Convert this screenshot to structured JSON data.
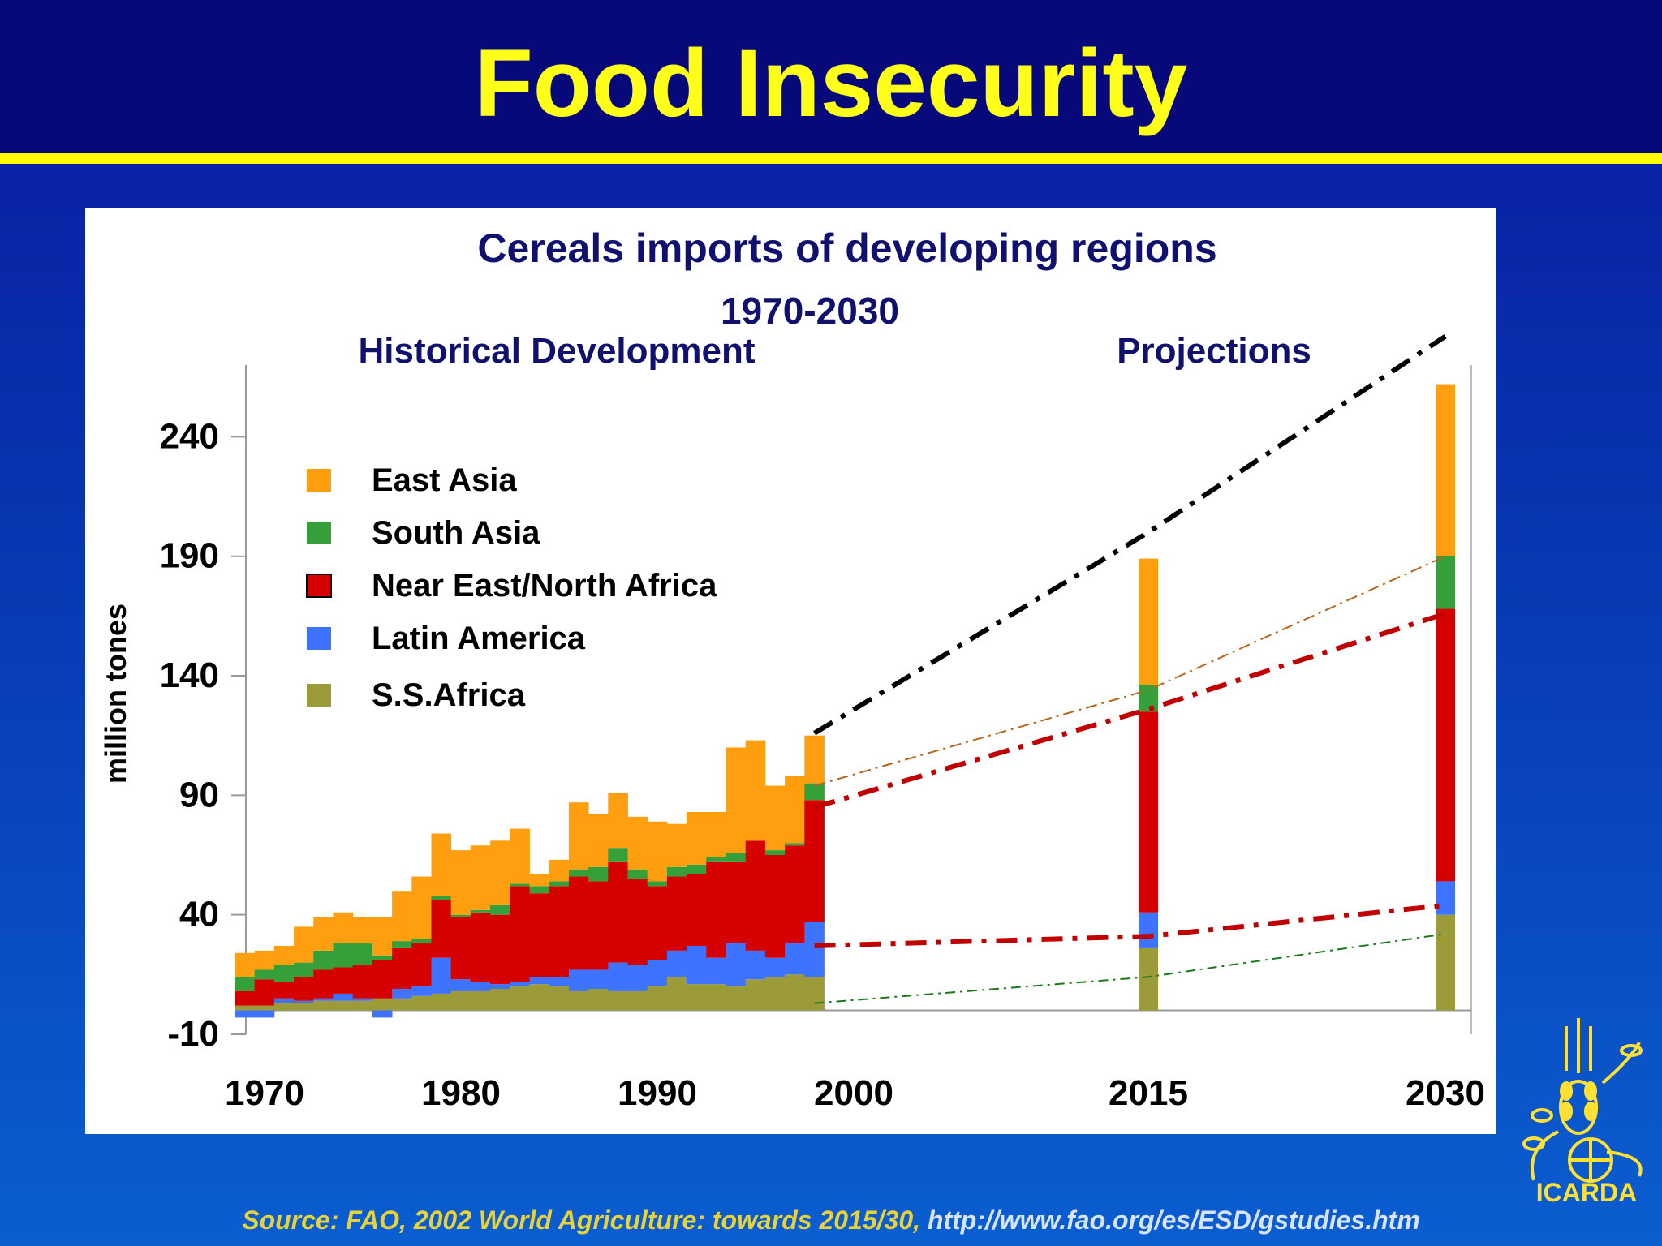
{
  "slide": {
    "title": "Food Insecurity",
    "source_prefix": "Source: FAO, 2002 World Agriculture: towards 2015/30, ",
    "source_url": "http://www.fao.org/es/ESD/gstudies.htm",
    "logo_text": "ICARDA"
  },
  "colors": {
    "east_asia": "#ff9e0f",
    "south_asia": "#35a03a",
    "near_east": "#d50000",
    "latin_america": "#3e73ff",
    "ss_africa": "#9b9b3a"
  },
  "chart_data": {
    "type": "bar",
    "stacked": true,
    "title": "Cereals imports of developing regions",
    "subtitle": "1970-2030",
    "section_labels": [
      "Historical Development",
      "Projections"
    ],
    "ylabel": "million tones",
    "ylim": [
      -10,
      270
    ],
    "yticks": [
      -10,
      40,
      90,
      140,
      190,
      240
    ],
    "xticks": [
      1970,
      1980,
      1990,
      2000,
      2015,
      2030
    ],
    "legend": [
      "East Asia",
      "South Asia",
      "Near East/North Africa",
      "Latin America",
      "S.S.Africa"
    ],
    "legend_placement": "top-left",
    "x": [
      1969,
      1970,
      1971,
      1972,
      1973,
      1974,
      1975,
      1976,
      1977,
      1978,
      1979,
      1980,
      1981,
      1982,
      1983,
      1984,
      1985,
      1986,
      1987,
      1988,
      1989,
      1990,
      1991,
      1992,
      1993,
      1994,
      1995,
      1996,
      1997,
      1998,
      2015,
      2030
    ],
    "series": [
      {
        "name": "S.S.Africa",
        "values": [
          2,
          2,
          3,
          3,
          4,
          4,
          4,
          5,
          5,
          6,
          7,
          8,
          8,
          9,
          10,
          11,
          10,
          8,
          9,
          8,
          8,
          10,
          14,
          11,
          11,
          10,
          13,
          14,
          15,
          14,
          26,
          40
        ]
      },
      {
        "name": "Latin America",
        "values": [
          -3,
          -3,
          2,
          1,
          1,
          3,
          1,
          -3,
          4,
          4,
          15,
          5,
          4,
          2,
          2,
          3,
          4,
          9,
          8,
          12,
          11,
          11,
          11,
          16,
          11,
          18,
          12,
          8,
          13,
          23,
          15,
          14
        ]
      },
      {
        "name": "Near East/North Africa",
        "values": [
          6,
          11,
          7,
          10,
          12,
          11,
          14,
          16,
          17,
          18,
          24,
          26,
          29,
          29,
          40,
          35,
          38,
          39,
          37,
          42,
          36,
          31,
          31,
          30,
          40,
          34,
          46,
          43,
          41,
          51,
          84,
          114
        ]
      },
      {
        "name": "South Asia",
        "values": [
          6,
          4,
          7,
          6,
          8,
          10,
          9,
          2,
          3,
          2,
          2,
          1,
          1,
          4,
          1,
          3,
          2,
          3,
          6,
          6,
          4,
          2,
          4,
          4,
          2,
          4,
          0,
          2,
          1,
          7,
          11,
          22
        ]
      },
      {
        "name": "East Asia",
        "values": [
          10,
          8,
          8,
          15,
          14,
          13,
          11,
          16,
          21,
          26,
          26,
          27,
          27,
          27,
          23,
          5,
          9,
          28,
          22,
          23,
          22,
          25,
          18,
          22,
          19,
          44,
          42,
          27,
          28,
          20,
          53,
          72
        ]
      }
    ],
    "projection_lines": [
      {
        "name": "Total",
        "x": [
          1998,
          2015,
          2030
        ],
        "values": [
          116,
          200,
          282
        ]
      },
      {
        "name": "Near East/North Africa",
        "x": [
          1998,
          2015,
          2030
        ],
        "values": [
          94,
          134,
          190
        ]
      },
      {
        "name": "Latin America",
        "x": [
          1998,
          2015,
          2030
        ],
        "values": [
          85,
          126,
          166
        ]
      },
      {
        "name": "S.S.Africa",
        "x": [
          1998,
          2015,
          2030
        ],
        "values": [
          27,
          31,
          44
        ]
      },
      {
        "name": "South Asia",
        "x": [
          1998,
          2015,
          2030
        ],
        "values": [
          3,
          14,
          32
        ]
      }
    ]
  }
}
